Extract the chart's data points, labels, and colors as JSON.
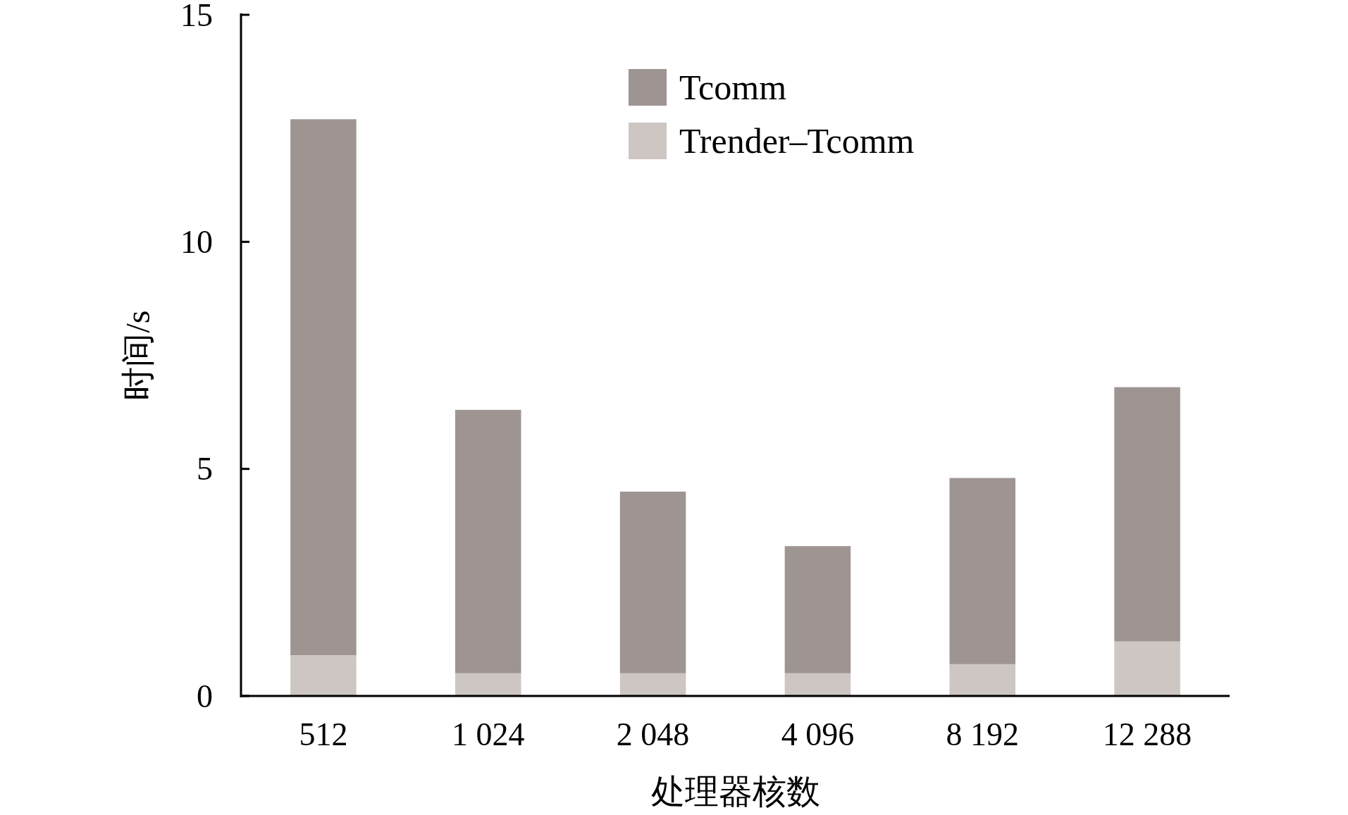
{
  "chart_data": {
    "type": "bar",
    "stacked": true,
    "xlabel": "处理器核数",
    "ylabel": "时间/s",
    "categories": [
      "512",
      "1 024",
      "2 048",
      "4 096",
      "8 192",
      "12 288"
    ],
    "series": [
      {
        "name": "Trender–Tcomm",
        "color": "#cdc6c3",
        "values": [
          0.9,
          0.5,
          0.5,
          0.5,
          0.7,
          1.2
        ]
      },
      {
        "name": "Tcomm",
        "color": "#9e9593",
        "values": [
          11.8,
          5.8,
          4.0,
          2.8,
          4.1,
          5.6
        ]
      }
    ],
    "ylim": [
      0,
      15
    ],
    "yticks": [
      0,
      5,
      10,
      15
    ],
    "grid": false,
    "legend": "top right"
  }
}
